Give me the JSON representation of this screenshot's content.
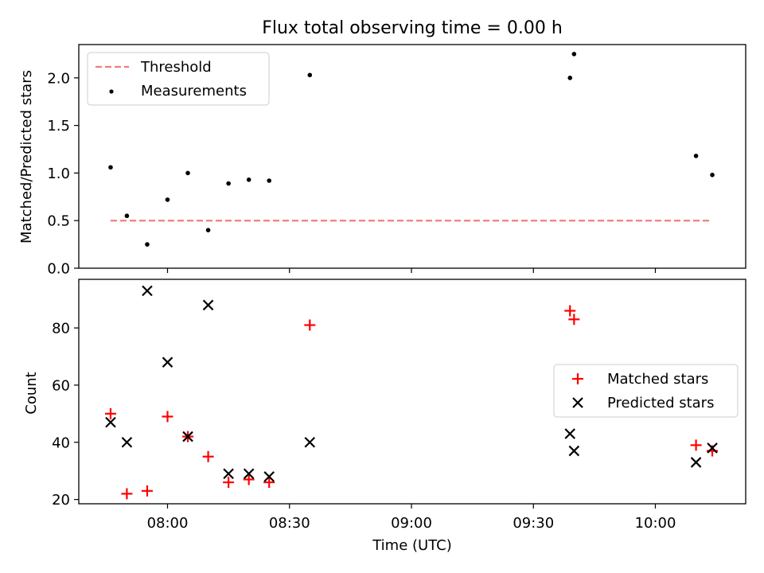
{
  "chart_data": {
    "title": "Flux total observing time = 0.00 h",
    "xlabel": "Time (UTC)",
    "xticks": [
      "08:00",
      "08:30",
      "09:00",
      "09:30",
      "10:00"
    ],
    "panels": [
      {
        "type": "scatter",
        "ylabel": "Matched/Predicted stars",
        "ylim": [
          0,
          2.35
        ],
        "yticks": [
          "0.0",
          "0.5",
          "1.0",
          "1.5",
          "2.0"
        ],
        "legend": {
          "placement": "upper-left"
        },
        "threshold": {
          "name": "Threshold",
          "value": 0.5,
          "color": "#f07e7e",
          "x_start": "07:46",
          "x_end": "10:14"
        },
        "series": [
          {
            "name": "Measurements",
            "color": "#000000",
            "marker": "dot",
            "points": [
              [
                "07:46",
                1.06
              ],
              [
                "07:50",
                0.55
              ],
              [
                "07:55",
                0.25
              ],
              [
                "08:00",
                0.72
              ],
              [
                "08:05",
                1.0
              ],
              [
                "08:10",
                0.4
              ],
              [
                "08:15",
                0.89
              ],
              [
                "08:20",
                0.93
              ],
              [
                "08:25",
                0.92
              ],
              [
                "08:35",
                2.03
              ],
              [
                "09:39",
                2.0
              ],
              [
                "09:40",
                2.25
              ],
              [
                "10:10",
                1.18
              ],
              [
                "10:14",
                0.98
              ]
            ]
          }
        ]
      },
      {
        "type": "scatter",
        "ylabel": "Count",
        "ylim": [
          18.5,
          97
        ],
        "yticks": [
          "20",
          "40",
          "60",
          "80"
        ],
        "legend": {
          "placement": "center-right"
        },
        "series": [
          {
            "name": "Matched stars",
            "color": "#ff0000",
            "marker": "plus",
            "points": [
              [
                "07:46",
                50
              ],
              [
                "07:50",
                22
              ],
              [
                "07:55",
                23
              ],
              [
                "08:00",
                49
              ],
              [
                "08:05",
                42
              ],
              [
                "08:10",
                35
              ],
              [
                "08:15",
                26
              ],
              [
                "08:20",
                27
              ],
              [
                "08:25",
                26
              ],
              [
                "08:35",
                81
              ],
              [
                "09:39",
                86
              ],
              [
                "09:40",
                83
              ],
              [
                "10:10",
                39
              ],
              [
                "10:14",
                37
              ]
            ]
          },
          {
            "name": "Predicted stars",
            "color": "#000000",
            "marker": "x",
            "points": [
              [
                "07:46",
                47
              ],
              [
                "07:50",
                40
              ],
              [
                "07:55",
                93
              ],
              [
                "08:00",
                68
              ],
              [
                "08:05",
                42
              ],
              [
                "08:10",
                88
              ],
              [
                "08:15",
                29
              ],
              [
                "08:20",
                29
              ],
              [
                "08:25",
                28
              ],
              [
                "08:35",
                40
              ],
              [
                "09:39",
                43
              ],
              [
                "09:40",
                37
              ],
              [
                "10:10",
                33
              ],
              [
                "10:14",
                38
              ]
            ]
          }
        ]
      }
    ]
  }
}
